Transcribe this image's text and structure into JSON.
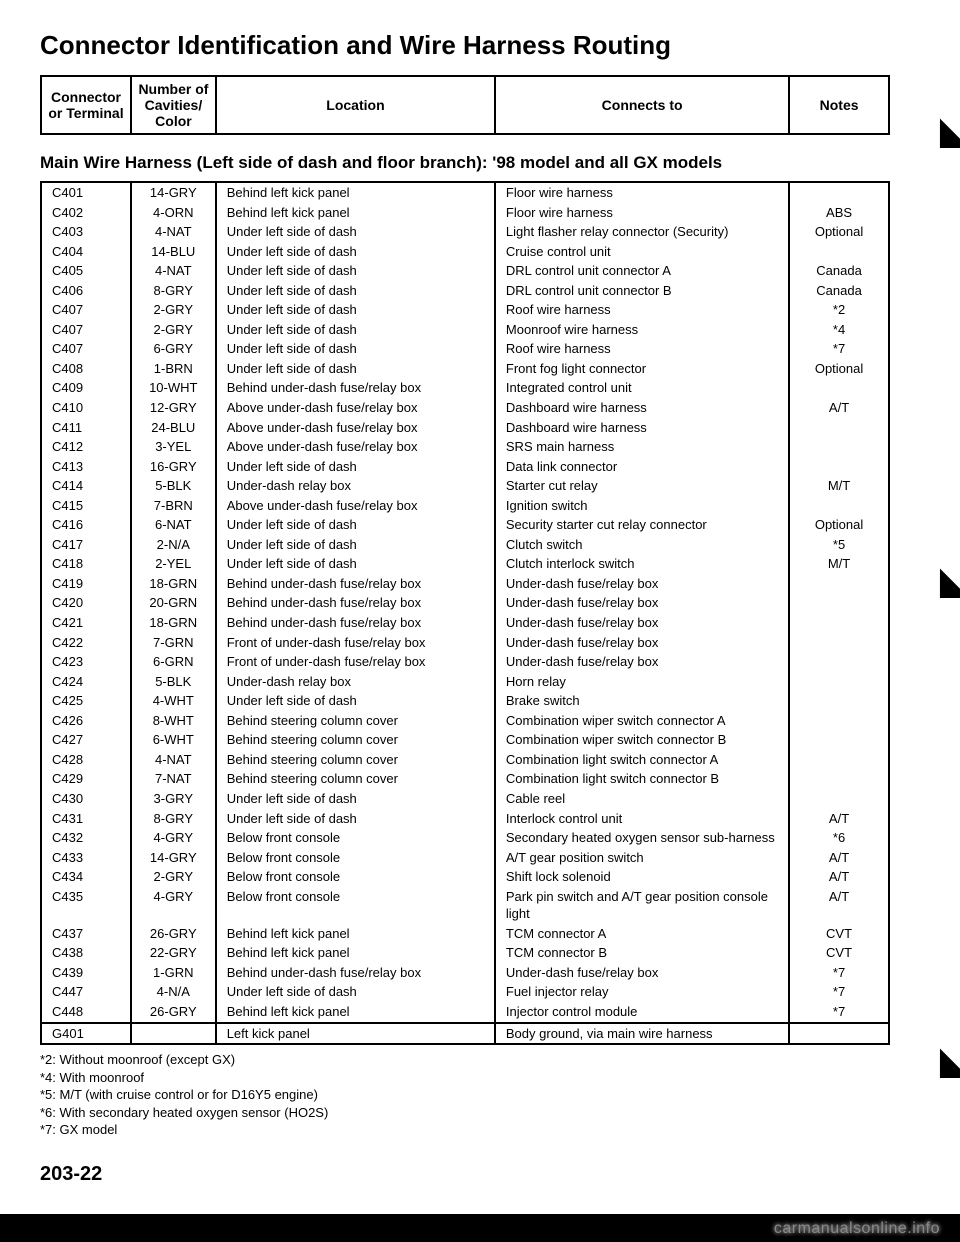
{
  "title": "Connector Identification and Wire Harness Routing",
  "header": {
    "col1": "Connector or Terminal",
    "col2": "Number of Cavities/ Color",
    "col3": "Location",
    "col4": "Connects to",
    "col5": "Notes"
  },
  "subhead": "Main Wire Harness (Left side of dash and floor branch): '98 model and all GX models",
  "rows": [
    {
      "c": "C401",
      "v": "14-GRY",
      "l": "Behind left kick panel",
      "t": "Floor wire harness",
      "n": ""
    },
    {
      "c": "C402",
      "v": "4-ORN",
      "l": "Behind left kick panel",
      "t": "Floor wire harness",
      "n": "ABS"
    },
    {
      "c": "C403",
      "v": "4-NAT",
      "l": "Under left side of dash",
      "t": "Light flasher relay connector (Security)",
      "n": "Optional"
    },
    {
      "c": "C404",
      "v": "14-BLU",
      "l": "Under left side of dash",
      "t": "Cruise control unit",
      "n": ""
    },
    {
      "c": "C405",
      "v": "4-NAT",
      "l": "Under left side of dash",
      "t": "DRL control unit connector A",
      "n": "Canada"
    },
    {
      "c": "C406",
      "v": "8-GRY",
      "l": "Under left side of dash",
      "t": "DRL control unit connector B",
      "n": "Canada"
    },
    {
      "c": "C407",
      "v": "2-GRY",
      "l": "Under left side of dash",
      "t": "Roof wire harness",
      "n": "*2"
    },
    {
      "c": "C407",
      "v": "2-GRY",
      "l": "Under left side of dash",
      "t": "Moonroof wire harness",
      "n": "*4"
    },
    {
      "c": "C407",
      "v": "6-GRY",
      "l": "Under left side of dash",
      "t": "Roof wire harness",
      "n": "*7"
    },
    {
      "c": "C408",
      "v": "1-BRN",
      "l": "Under left side of dash",
      "t": "Front fog light connector",
      "n": "Optional"
    },
    {
      "c": "C409",
      "v": "10-WHT",
      "l": "Behind under-dash fuse/relay box",
      "t": "Integrated control unit",
      "n": ""
    },
    {
      "c": "C410",
      "v": "12-GRY",
      "l": "Above under-dash fuse/relay box",
      "t": "Dashboard wire harness",
      "n": "A/T"
    },
    {
      "c": "C411",
      "v": "24-BLU",
      "l": "Above under-dash fuse/relay box",
      "t": "Dashboard wire harness",
      "n": ""
    },
    {
      "c": "C412",
      "v": "3-YEL",
      "l": "Above under-dash fuse/relay box",
      "t": "SRS main harness",
      "n": ""
    },
    {
      "c": "C413",
      "v": "16-GRY",
      "l": "Under left side of dash",
      "t": "Data link connector",
      "n": ""
    },
    {
      "c": "C414",
      "v": "5-BLK",
      "l": "Under-dash relay box",
      "t": "Starter cut relay",
      "n": "M/T"
    },
    {
      "c": "C415",
      "v": "7-BRN",
      "l": "Above under-dash fuse/relay box",
      "t": "Ignition switch",
      "n": ""
    },
    {
      "c": "C416",
      "v": "6-NAT",
      "l": "Under left side of dash",
      "t": "Security starter cut relay connector",
      "n": "Optional"
    },
    {
      "c": "C417",
      "v": "2-N/A",
      "l": "Under left side of dash",
      "t": "Clutch switch",
      "n": "*5"
    },
    {
      "c": "C418",
      "v": "2-YEL",
      "l": "Under left side of dash",
      "t": "Clutch interlock switch",
      "n": "M/T"
    },
    {
      "c": "C419",
      "v": "18-GRN",
      "l": "Behind under-dash fuse/relay box",
      "t": "Under-dash fuse/relay box",
      "n": ""
    },
    {
      "c": "C420",
      "v": "20-GRN",
      "l": "Behind under-dash fuse/relay box",
      "t": "Under-dash fuse/relay box",
      "n": ""
    },
    {
      "c": "C421",
      "v": "18-GRN",
      "l": "Behind under-dash fuse/relay box",
      "t": "Under-dash fuse/relay box",
      "n": ""
    },
    {
      "c": "C422",
      "v": "7-GRN",
      "l": "Front of under-dash fuse/relay box",
      "t": "Under-dash fuse/relay box",
      "n": ""
    },
    {
      "c": "C423",
      "v": "6-GRN",
      "l": "Front of under-dash fuse/relay box",
      "t": "Under-dash fuse/relay box",
      "n": ""
    },
    {
      "c": "C424",
      "v": "5-BLK",
      "l": "Under-dash relay box",
      "t": "Horn relay",
      "n": ""
    },
    {
      "c": "C425",
      "v": "4-WHT",
      "l": "Under left side of dash",
      "t": "Brake switch",
      "n": ""
    },
    {
      "c": "C426",
      "v": "8-WHT",
      "l": "Behind steering column cover",
      "t": "Combination wiper switch connector A",
      "n": ""
    },
    {
      "c": "C427",
      "v": "6-WHT",
      "l": "Behind steering column cover",
      "t": "Combination wiper switch connector B",
      "n": ""
    },
    {
      "c": "C428",
      "v": "4-NAT",
      "l": "Behind steering column cover",
      "t": "Combination light switch connector A",
      "n": ""
    },
    {
      "c": "C429",
      "v": "7-NAT",
      "l": "Behind steering column cover",
      "t": "Combination light switch connector B",
      "n": ""
    },
    {
      "c": "C430",
      "v": "3-GRY",
      "l": "Under left side of dash",
      "t": "Cable reel",
      "n": ""
    },
    {
      "c": "C431",
      "v": "8-GRY",
      "l": "Under left side of dash",
      "t": "Interlock control unit",
      "n": "A/T"
    },
    {
      "c": "C432",
      "v": "4-GRY",
      "l": "Below front console",
      "t": "Secondary heated oxygen sensor sub-harness",
      "n": "*6"
    },
    {
      "c": "C433",
      "v": "14-GRY",
      "l": "Below front console",
      "t": "A/T gear position switch",
      "n": "A/T"
    },
    {
      "c": "C434",
      "v": "2-GRY",
      "l": "Below front console",
      "t": "Shift lock solenoid",
      "n": "A/T"
    },
    {
      "c": "C435",
      "v": "4-GRY",
      "l": "Below front console",
      "t": "Park pin switch and A/T gear position console light",
      "n": "A/T"
    },
    {
      "c": "C437",
      "v": "26-GRY",
      "l": "Behind left kick panel",
      "t": "TCM connector A",
      "n": "CVT"
    },
    {
      "c": "C438",
      "v": "22-GRY",
      "l": "Behind left kick panel",
      "t": "TCM connector B",
      "n": "CVT"
    },
    {
      "c": "C439",
      "v": "1-GRN",
      "l": "Behind under-dash fuse/relay box",
      "t": "Under-dash fuse/relay box",
      "n": "*7"
    },
    {
      "c": "C447",
      "v": "4-N/A",
      "l": "Under left side of dash",
      "t": "Fuel injector relay",
      "n": "*7"
    },
    {
      "c": "C448",
      "v": "26-GRY",
      "l": "Behind left kick panel",
      "t": "Injector control module",
      "n": "*7"
    }
  ],
  "gRow": {
    "c": "G401",
    "v": "",
    "l": "Left kick panel",
    "t": "Body ground, via main wire harness",
    "n": ""
  },
  "footnotes": [
    "*2: Without moonroof (except GX)",
    "*4: With moonroof",
    "*5: M/T (with cruise control or for D16Y5 engine)",
    "*6: With secondary heated oxygen sensor (HO2S)",
    "*7: GX model"
  ],
  "pageNum": "203-22",
  "watermark": "carmanualsonline.info",
  "colWidths": {
    "conn": 90,
    "cav": 85,
    "loc": 280,
    "to": 295,
    "notes": 100
  }
}
